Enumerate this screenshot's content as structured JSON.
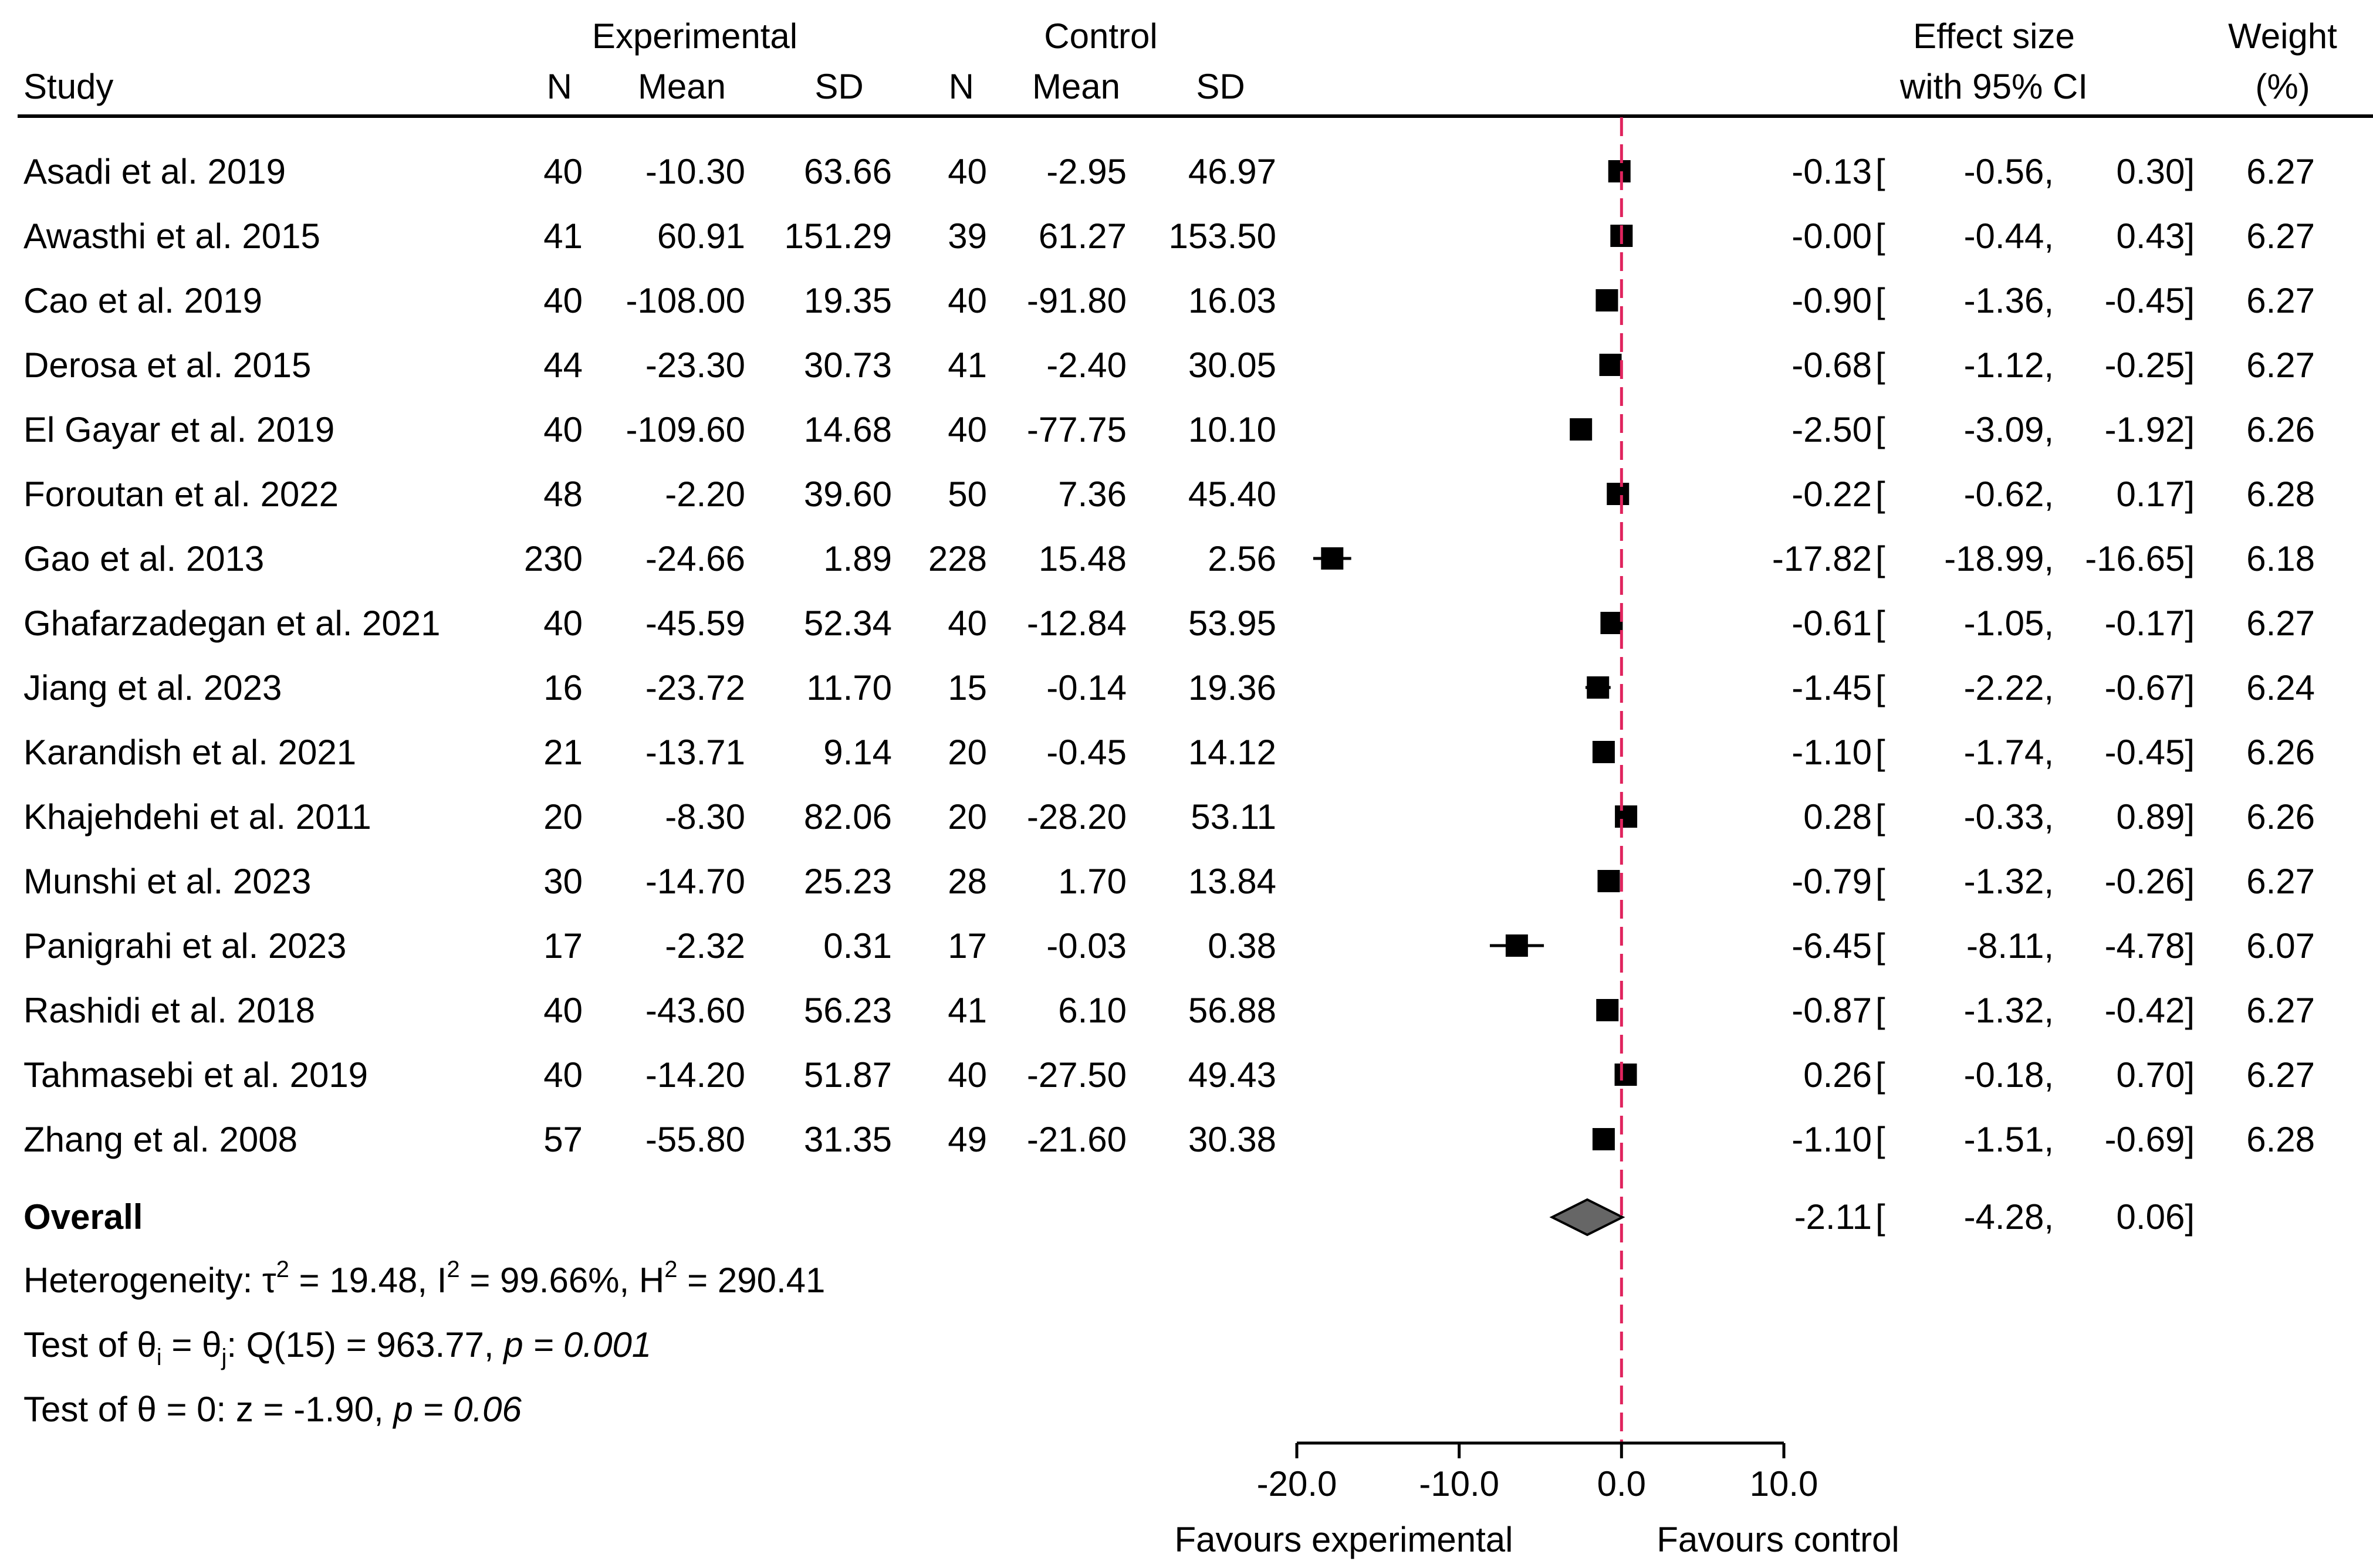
{
  "chart_data": {
    "type": "forest",
    "header": {
      "group1": "Experimental",
      "group2": "Control",
      "study": "Study",
      "n": "N",
      "mean": "Mean",
      "sd": "SD",
      "effect1": "Effect size",
      "effect2": "with 95% CI",
      "weight1": "Weight",
      "weight2": "(%)"
    },
    "studies": [
      {
        "name": "Asadi et al. 2019",
        "en": "40",
        "em": "-10.30",
        "esd": "63.66",
        "cn": "40",
        "cm": "-2.95",
        "csd": "46.97",
        "es": -0.13,
        "lo": -0.56,
        "hi": 0.3,
        "es_txt": "-0.13",
        "lo_txt": "-0.56,",
        "hi_txt": "0.30]",
        "w": "6.27"
      },
      {
        "name": "Awasthi et al. 2015",
        "en": "41",
        "em": "60.91",
        "esd": "151.29",
        "cn": "39",
        "cm": "61.27",
        "csd": "153.50",
        "es": -0.0,
        "lo": -0.44,
        "hi": 0.43,
        "es_txt": "-0.00",
        "lo_txt": "-0.44,",
        "hi_txt": "0.43]",
        "w": "6.27"
      },
      {
        "name": "Cao et al. 2019",
        "en": "40",
        "em": "-108.00",
        "esd": "19.35",
        "cn": "40",
        "cm": "-91.80",
        "csd": "16.03",
        "es": -0.9,
        "lo": -1.36,
        "hi": -0.45,
        "es_txt": "-0.90",
        "lo_txt": "-1.36,",
        "hi_txt": "-0.45]",
        "w": "6.27"
      },
      {
        "name": "Derosa et al. 2015",
        "en": "44",
        "em": "-23.30",
        "esd": "30.73",
        "cn": "41",
        "cm": "-2.40",
        "csd": "30.05",
        "es": -0.68,
        "lo": -1.12,
        "hi": -0.25,
        "es_txt": "-0.68",
        "lo_txt": "-1.12,",
        "hi_txt": "-0.25]",
        "w": "6.27"
      },
      {
        "name": "El Gayar et al. 2019",
        "en": "40",
        "em": "-109.60",
        "esd": "14.68",
        "cn": "40",
        "cm": "-77.75",
        "csd": "10.10",
        "es": -2.5,
        "lo": -3.09,
        "hi": -1.92,
        "es_txt": "-2.50",
        "lo_txt": "-3.09,",
        "hi_txt": "-1.92]",
        "w": "6.26"
      },
      {
        "name": "Foroutan et al. 2022",
        "en": "48",
        "em": "-2.20",
        "esd": "39.60",
        "cn": "50",
        "cm": "7.36",
        "csd": "45.40",
        "es": -0.22,
        "lo": -0.62,
        "hi": 0.17,
        "es_txt": "-0.22",
        "lo_txt": "-0.62,",
        "hi_txt": "0.17]",
        "w": "6.28"
      },
      {
        "name": "Gao et al. 2013",
        "en": "230",
        "em": "-24.66",
        "esd": "1.89",
        "cn": "228",
        "cm": "15.48",
        "csd": "2.56",
        "es": -17.82,
        "lo": -18.99,
        "hi": -16.65,
        "es_txt": "-17.82",
        "lo_txt": "-18.99,",
        "hi_txt": "-16.65]",
        "w": "6.18"
      },
      {
        "name": "Ghafarzadegan et al. 2021",
        "en": "40",
        "em": "-45.59",
        "esd": "52.34",
        "cn": "40",
        "cm": "-12.84",
        "csd": "53.95",
        "es": -0.61,
        "lo": -1.05,
        "hi": -0.17,
        "es_txt": "-0.61",
        "lo_txt": "-1.05,",
        "hi_txt": "-0.17]",
        "w": "6.27"
      },
      {
        "name": "Jiang et al. 2023",
        "en": "16",
        "em": "-23.72",
        "esd": "11.70",
        "cn": "15",
        "cm": "-0.14",
        "csd": "19.36",
        "es": -1.45,
        "lo": -2.22,
        "hi": -0.67,
        "es_txt": "-1.45",
        "lo_txt": "-2.22,",
        "hi_txt": "-0.67]",
        "w": "6.24"
      },
      {
        "name": "Karandish et al. 2021",
        "en": "21",
        "em": "-13.71",
        "esd": "9.14",
        "cn": "20",
        "cm": "-0.45",
        "csd": "14.12",
        "es": -1.1,
        "lo": -1.74,
        "hi": -0.45,
        "es_txt": "-1.10",
        "lo_txt": "-1.74,",
        "hi_txt": "-0.45]",
        "w": "6.26"
      },
      {
        "name": "Khajehdehi et al. 2011",
        "en": "20",
        "em": "-8.30",
        "esd": "82.06",
        "cn": "20",
        "cm": "-28.20",
        "csd": "53.11",
        "es": 0.28,
        "lo": -0.33,
        "hi": 0.89,
        "es_txt": "0.28",
        "lo_txt": "-0.33,",
        "hi_txt": "0.89]",
        "w": "6.26"
      },
      {
        "name": "Munshi et al. 2023",
        "en": "30",
        "em": "-14.70",
        "esd": "25.23",
        "cn": "28",
        "cm": "1.70",
        "csd": "13.84",
        "es": -0.79,
        "lo": -1.32,
        "hi": -0.26,
        "es_txt": "-0.79",
        "lo_txt": "-1.32,",
        "hi_txt": "-0.26]",
        "w": "6.27"
      },
      {
        "name": "Panigrahi et al. 2023",
        "en": "17",
        "em": "-2.32",
        "esd": "0.31",
        "cn": "17",
        "cm": "-0.03",
        "csd": "0.38",
        "es": -6.45,
        "lo": -8.11,
        "hi": -4.78,
        "es_txt": "-6.45",
        "lo_txt": "-8.11,",
        "hi_txt": "-4.78]",
        "w": "6.07"
      },
      {
        "name": "Rashidi et al. 2018",
        "en": "40",
        "em": "-43.60",
        "esd": "56.23",
        "cn": "41",
        "cm": "6.10",
        "csd": "56.88",
        "es": -0.87,
        "lo": -1.32,
        "hi": -0.42,
        "es_txt": "-0.87",
        "lo_txt": "-1.32,",
        "hi_txt": "-0.42]",
        "w": "6.27"
      },
      {
        "name": "Tahmasebi et al. 2019",
        "en": "40",
        "em": "-14.20",
        "esd": "51.87",
        "cn": "40",
        "cm": "-27.50",
        "csd": "49.43",
        "es": 0.26,
        "lo": -0.18,
        "hi": 0.7,
        "es_txt": "0.26",
        "lo_txt": "-0.18,",
        "hi_txt": "0.70]",
        "w": "6.27"
      },
      {
        "name": "Zhang et al. 2008",
        "en": "57",
        "em": "-55.80",
        "esd": "31.35",
        "cn": "49",
        "cm": "-21.60",
        "csd": "30.38",
        "es": -1.1,
        "lo": -1.51,
        "hi": -0.69,
        "es_txt": "-1.10",
        "lo_txt": "-1.51,",
        "hi_txt": "-0.69]",
        "w": "6.28"
      }
    ],
    "overall": {
      "label": "Overall",
      "es": -2.11,
      "lo": -4.28,
      "hi": 0.06,
      "es_txt": "-2.11",
      "lo_txt": "-4.28,",
      "hi_txt": "0.06]"
    },
    "bracket": "[",
    "stats": {
      "heterogeneity": {
        "prefix": "Heterogeneity: τ",
        "sup1": "2",
        "mid1": " = 19.48, I",
        "sup2": "2",
        "mid2": " = 99.66%, H",
        "sup3": "2",
        "end": " = 290.41"
      },
      "test1": {
        "prefix": "Test of θ",
        "sub1": "i",
        "mid": " = θ",
        "sub2": "j",
        "stat": ": Q(15) = 963.77, ",
        "p": "p = 0.001"
      },
      "test2": {
        "stat": "Test of θ = 0: z = -1.90, ",
        "p": "p = 0.06"
      }
    },
    "x_axis": {
      "ticks": [
        -20,
        -10,
        0,
        10
      ],
      "tick_labels": [
        "-20.0",
        "-10.0",
        "0.0",
        "10.0"
      ],
      "xlim": [
        -20,
        10
      ],
      "favours_left": "Favours experimental",
      "favours_right": "Favours control"
    },
    "colors": {
      "marker": "#000000",
      "diamond_fill": "#666666",
      "null_line": "#e0245e"
    }
  }
}
